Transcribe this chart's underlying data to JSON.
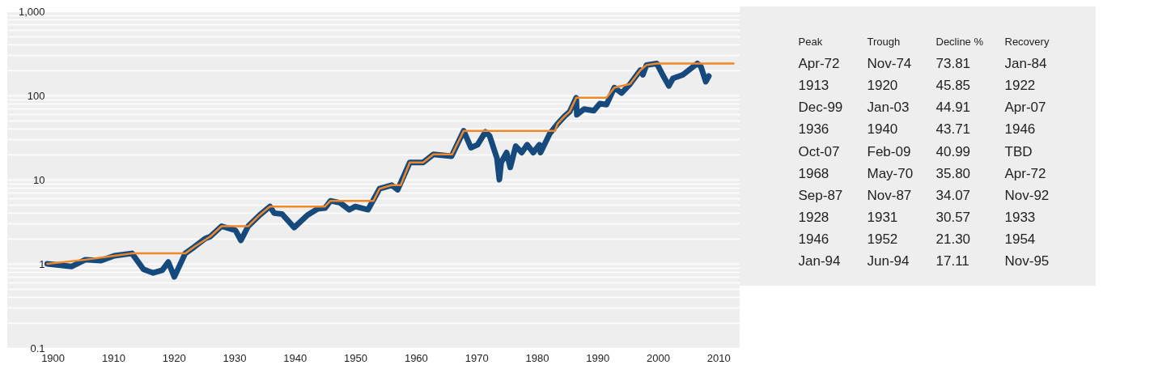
{
  "chart_data": [
    {
      "type": "line",
      "xlim": [
        1892.5,
        2013.5
      ],
      "xticks": [
        1900,
        1910,
        1920,
        1930,
        1940,
        1950,
        1960,
        1970,
        1980,
        1990,
        2000,
        2010
      ],
      "ylim": [
        0.1,
        1000
      ],
      "log": true,
      "grid": "y",
      "line_style": "solid",
      "yticks": [
        0.1,
        {
          "value": 0.2,
          "label": null
        },
        {
          "value": 0.3,
          "label": null
        },
        {
          "value": 0.4,
          "label": null
        },
        {
          "value": 0.5,
          "label": null
        },
        {
          "value": 0.6,
          "label": null
        },
        {
          "value": 0.7,
          "label": null
        },
        {
          "value": 0.8,
          "label": null
        },
        {
          "value": 0.9,
          "label": null
        },
        1,
        {
          "value": 2,
          "label": null
        },
        {
          "value": 3,
          "label": null
        },
        {
          "value": 4,
          "label": null
        },
        {
          "value": 5,
          "label": null
        },
        {
          "value": 6,
          "label": null
        },
        {
          "value": 7,
          "label": null
        },
        {
          "value": 8,
          "label": null
        },
        {
          "value": 9,
          "label": null
        },
        10,
        {
          "value": 20,
          "label": null
        },
        {
          "value": 30,
          "label": null
        },
        {
          "value": 40,
          "label": null
        },
        {
          "value": 50,
          "label": null
        },
        {
          "value": 60,
          "label": null
        },
        {
          "value": 70,
          "label": null
        },
        {
          "value": 80,
          "label": null
        },
        {
          "value": 90,
          "label": null
        },
        100,
        {
          "value": 200,
          "label": null
        },
        {
          "value": 300,
          "label": null
        },
        {
          "value": 400,
          "label": null
        },
        {
          "value": 500,
          "label": null
        },
        {
          "value": 600,
          "label": null
        },
        {
          "value": 700,
          "label": null
        },
        {
          "value": 800,
          "label": null
        },
        {
          "value": 900,
          "label": null
        },
        {
          "value": 1000,
          "label": "1,000"
        }
      ],
      "series": [
        {
          "color": "#174a7c",
          "x": [
            1899.1,
            1903.1,
            1905.4,
            1907.9,
            1910.2,
            1913.1,
            1915,
            1916.6,
            1918.1,
            1919.1,
            1920.1,
            1921.9,
            1923.4,
            1925.2,
            1926,
            1927.9,
            1930.2,
            1931.1,
            1932.3,
            1934.2,
            1935.9,
            1936.6,
            1937.9,
            1939.9,
            1942.1,
            1943.8,
            1945,
            1945.9,
            1947.5,
            1949,
            1950,
            1952.1,
            1954,
            1956,
            1957,
            1959,
            1961.2,
            1962.9,
            1965.9,
            1967.9,
            1969.1,
            1970.2,
            1971.5,
            1972.2,
            1973.4,
            1973.8,
            1974.1,
            1975,
            1975.6,
            1976.5,
            1977.5,
            1978.4,
            1979.4,
            1980.4,
            1980.6,
            1982.1,
            1983.4,
            1984.6,
            1985.4,
            1986.5,
            1986.6,
            1987.8,
            1989.4,
            1990.4,
            1991.5,
            1992.8,
            1994,
            1995.4,
            1997.1,
            1997.5,
            1998.1,
            1999.8,
            2000.9,
            2001.8,
            2002.5,
            2004.1,
            2006.5,
            2007.1,
            2007.9,
            2008.4
          ],
          "values": [
            1.0,
            0.93,
            1.12,
            1.09,
            1.25,
            1.33,
            0.86,
            0.78,
            0.84,
            1.05,
            0.7,
            1.33,
            1.59,
            2.0,
            2.1,
            2.8,
            2.5,
            1.9,
            2.8,
            3.8,
            4.8,
            4.0,
            3.9,
            2.7,
            3.8,
            4.5,
            4.6,
            5.6,
            5.3,
            4.4,
            4.8,
            4.4,
            7.8,
            8.6,
            7.6,
            16,
            16,
            20,
            19,
            38,
            24,
            26,
            37,
            33,
            18,
            10,
            16,
            21,
            14,
            25,
            21,
            26,
            21,
            26,
            21,
            35,
            46,
            57,
            64,
            94,
            59,
            69,
            66,
            80,
            78,
            124,
            107,
            137,
            200,
            176,
            230,
            240,
            170,
            130,
            160,
            176,
            240,
            220,
            146,
            170
          ]
        },
        {
          "color": "#f0882a",
          "x": [
            1899.1,
            1905.4,
            1910.2,
            1913.1,
            1921.9,
            1923.4,
            1926,
            1927.9,
            1932.3,
            1934.2,
            1935.9,
            1945,
            1945.9,
            1953,
            1954,
            1956,
            1957.5,
            1959,
            1961.2,
            1962.9,
            1966,
            1967.9,
            1983,
            1983.4,
            1984.6,
            1985.4,
            1986.5,
            1991.5,
            1992.8,
            1995.4,
            1997.1,
            1998.1,
            1999.8,
            2012.5
          ],
          "values": [
            1.0,
            1.12,
            1.25,
            1.33,
            1.33,
            1.59,
            2.1,
            2.8,
            2.8,
            3.8,
            4.8,
            4.8,
            5.6,
            5.6,
            7.8,
            8.6,
            8.6,
            16,
            16,
            20,
            20,
            38,
            38,
            46,
            57,
            64,
            94,
            94,
            124,
            137,
            200,
            230,
            240,
            240
          ]
        }
      ]
    },
    {
      "type": "other",
      "categories": [
        "Peak",
        "Trough",
        "Decline %",
        "Recovery"
      ],
      "annotations": [
        "Apr-72",
        "Nov-74",
        "73.81",
        "Jan-84",
        "1913",
        "1920",
        "45.85",
        "1922",
        "Dec-99",
        "Jan-03",
        "44.91",
        "Apr-07",
        "1936",
        "1940",
        "43.71",
        "1946",
        "Oct-07",
        "Feb-09",
        "40.99",
        "TBD",
        "1968",
        "May-70",
        "35.80",
        "Apr-72",
        "Sep-87",
        "Nov-87",
        "34.07",
        "Nov-92",
        "1928",
        "1931",
        "30.57",
        "1933",
        "1946",
        "1952",
        "21.30",
        "1954",
        "Jan-94",
        "Jun-94",
        "17.11",
        "Nov-95"
      ]
    }
  ]
}
